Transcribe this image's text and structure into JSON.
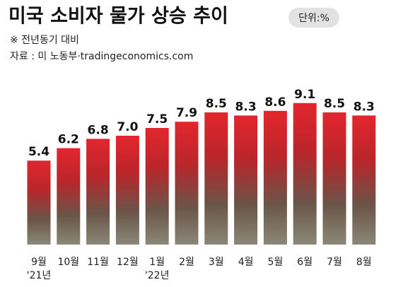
{
  "chart_data": {
    "type": "bar",
    "title": "미국 소비자 물가 상승 추이",
    "unit_note": "단위:%",
    "subtitle": "※ 전년동기 대비",
    "source": "자료 : 미 노동부·tradingeconomics.com",
    "categories": [
      "9월\n'21년",
      "10월",
      "11월",
      "12월",
      "1월\n'22년",
      "2월",
      "3월",
      "4월",
      "5월",
      "6월",
      "7월",
      "8월"
    ],
    "values": [
      5.4,
      6.2,
      6.8,
      7.0,
      7.5,
      7.9,
      8.5,
      8.3,
      8.6,
      9.1,
      8.5,
      8.3
    ],
    "value_labels": [
      "5.4",
      "6.2",
      "6.8",
      "7.0",
      "7.5",
      "7.9",
      "8.5",
      "8.3",
      "8.6",
      "9.1",
      "8.5",
      "8.3"
    ],
    "color": "#e3262d"
  }
}
